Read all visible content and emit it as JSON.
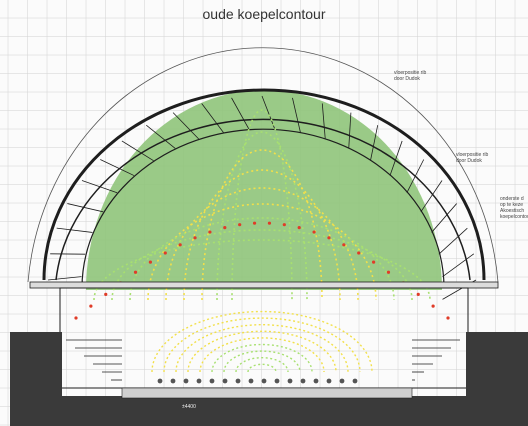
{
  "title": "oude koepelcontour",
  "annotations": [
    {
      "id": "ann1",
      "text": "vloerpositie rib\ndoor Dudok"
    },
    {
      "id": "ann2",
      "text": "vloerpositie rib\ndoor Dudok"
    },
    {
      "id": "ann3",
      "text": "onderste d\nop te keze\nAkoestisch\nkoepelcontour"
    }
  ],
  "dimension_label": "±4400",
  "colors": {
    "background": "#fbfbfb",
    "grid": "#d2d2d2",
    "structure": "#1e1e1e",
    "dome_fill": "#8fc47a",
    "ray_yellow": "#f2e04a",
    "ray_green": "#a8e070",
    "ray_red": "#e03c28",
    "dark_block": "#3a3a3a"
  }
}
